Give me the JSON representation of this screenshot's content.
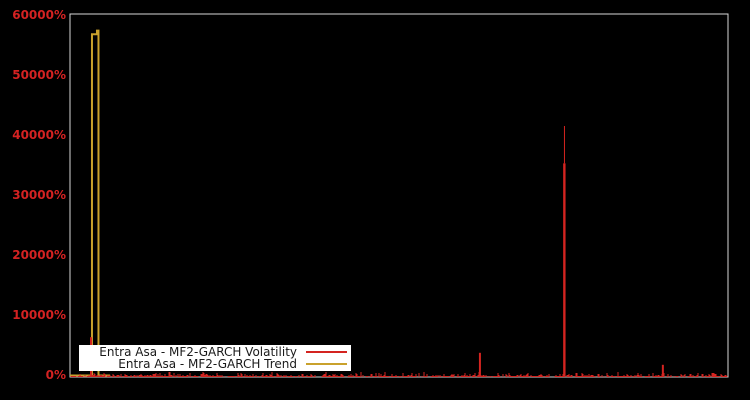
{
  "chart_data": {
    "type": "line",
    "title": "",
    "xlabel": "",
    "ylabel": "",
    "grid": false,
    "ylim": [
      0,
      60000
    ],
    "ytick_values": [
      0,
      10000,
      20000,
      30000,
      40000,
      50000,
      60000
    ],
    "ytick_labels": [
      "0%",
      "10000%",
      "20000%",
      "30000%",
      "40000%",
      "50000%",
      "60000%"
    ],
    "xtick_labels": [],
    "colors": {
      "background": "#000000",
      "frame": "#d9d9d9",
      "tick_label": "#d42222",
      "volatility": "#d42420",
      "trend": "#c9a12c",
      "legend_bg": "#ffffff",
      "legend_text": "#1a1a1a"
    },
    "legend": {
      "position": "lower-left",
      "items": [
        {
          "label": "Entra Asa - MF2-GARCH Volatility",
          "series": "volatility"
        },
        {
          "label": "Entra Asa - MF2-GARCH Trend",
          "series": "trend"
        }
      ]
    },
    "series": [
      {
        "name": "Entra Asa - MF2-GARCH Volatility",
        "style": "noisy-baseline-with-spikes",
        "baseline_pct": 0,
        "noise_max_pct": 800,
        "spikes": [
          {
            "x_frac": 0.032,
            "pct": 6300
          },
          {
            "x_frac": 0.623,
            "pct": 3700
          },
          {
            "x_frac": 0.751,
            "pct": 41500
          },
          {
            "x_frac": 0.901,
            "pct": 1700
          }
        ]
      },
      {
        "name": "Entra Asa - MF2-GARCH Trend",
        "style": "baseline-with-single-spike",
        "baseline_pct": 0,
        "spike": {
          "x_frac": 0.0334,
          "peak_pct": 56800,
          "plateau_end_frac": 0.041,
          "step_pct": 57400
        }
      }
    ]
  }
}
